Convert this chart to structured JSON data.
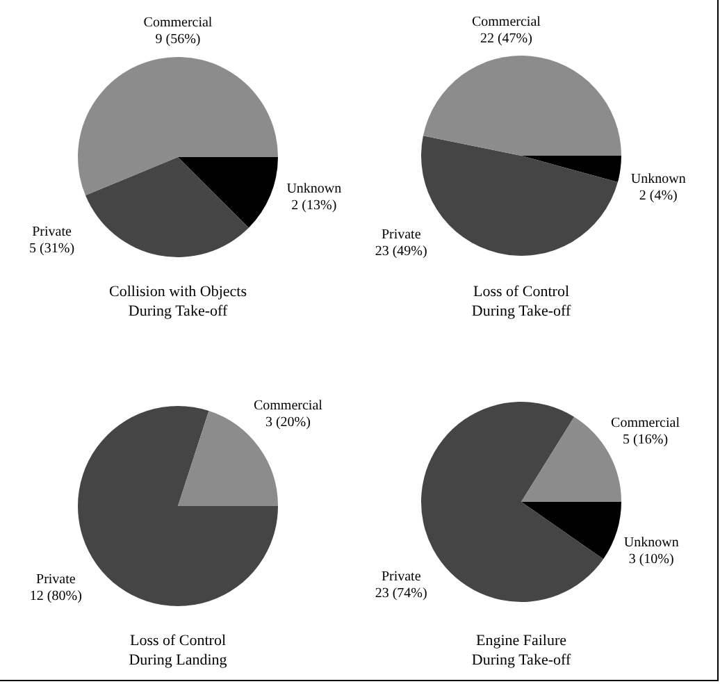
{
  "chart_data": [
    {
      "type": "pie",
      "title": "Collision with Objects\nDuring Take-off",
      "categories": [
        "Commercial",
        "Private",
        "Unknown"
      ],
      "values": [
        9,
        5,
        2
      ],
      "value_labels": [
        "9 (56%)",
        "5 (31%)",
        "2 (13%)"
      ],
      "colors": [
        "#8c8c8c",
        "#454545",
        "#000000"
      ]
    },
    {
      "type": "pie",
      "title": "Loss of Control\nDuring Take-off",
      "categories": [
        "Commercial",
        "Private",
        "Unknown"
      ],
      "values": [
        22,
        23,
        2
      ],
      "value_labels": [
        "22 (47%)",
        "23 (49%)",
        "2 (4%)"
      ],
      "colors": [
        "#8c8c8c",
        "#454545",
        "#000000"
      ]
    },
    {
      "type": "pie",
      "title": "Loss of Control\nDuring Landing",
      "categories": [
        "Commercial",
        "Private"
      ],
      "values": [
        3,
        12
      ],
      "value_labels": [
        "3 (20%)",
        "12 (80%)"
      ],
      "colors": [
        "#8c8c8c",
        "#454545"
      ]
    },
    {
      "type": "pie",
      "title": "Engine Failure\nDuring Take-off",
      "categories": [
        "Commercial",
        "Private",
        "Unknown"
      ],
      "values": [
        5,
        23,
        3
      ],
      "value_labels": [
        "5 (16%)",
        "23 (74%)",
        "3 (10%)"
      ],
      "colors": [
        "#8c8c8c",
        "#454545",
        "#000000"
      ]
    }
  ]
}
